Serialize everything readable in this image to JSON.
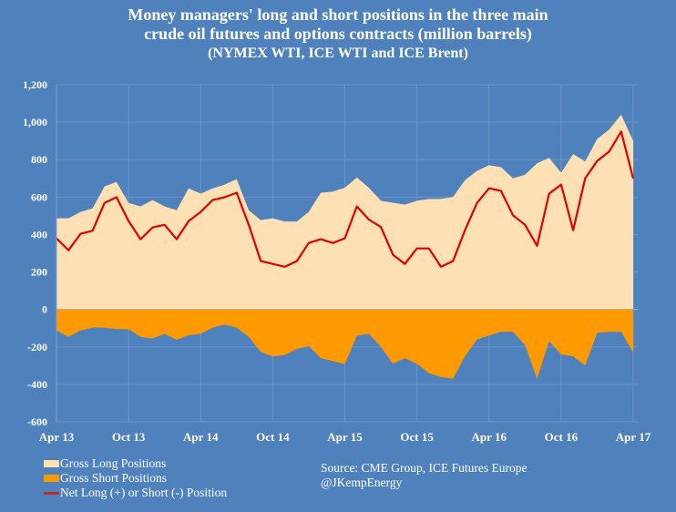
{
  "title": {
    "line1": "Money managers' long and short positions in the three main",
    "line2": "crude oil futures and options contracts (million barrels)",
    "line3": "(NYMEX WTI, ICE WTI and ICE Brent)"
  },
  "legend": {
    "long": "Gross Long Positions",
    "short": "Gross Short Positions",
    "net": "Net Long (+) or Short (-) Position"
  },
  "source": {
    "line1": "Source:  CME Group, ICE Futures Europe",
    "line2": "@JKempEnergy"
  },
  "colors": {
    "background": "#4f81bd",
    "long": "#fde1b5",
    "short": "#ff9900",
    "net": "#e00000"
  },
  "chart_data": {
    "type": "area",
    "title": "Money managers' long and short positions in the three main crude oil futures and options contracts (million barrels) (NYMEX WTI, ICE WTI and ICE Brent)",
    "ylim": [
      -600,
      1200
    ],
    "yticks": [
      -600,
      -400,
      -200,
      0,
      200,
      400,
      600,
      800,
      1000,
      1200
    ],
    "ytick_labels": [
      "-600",
      "-400",
      "-200",
      "0",
      "200",
      "400",
      "600",
      "800",
      "1,000",
      "1,200"
    ],
    "xtick_labels": [
      "Apr 13",
      "Oct 13",
      "Apr 14",
      "Oct 14",
      "Apr 15",
      "Oct 15",
      "Apr 16",
      "Oct 16",
      "Apr 17"
    ],
    "grid": true,
    "legend_position": "bottom-left",
    "x": [
      "2013-04",
      "2013-05",
      "2013-06",
      "2013-07",
      "2013-08",
      "2013-09",
      "2013-10",
      "2013-11",
      "2013-12",
      "2014-01",
      "2014-02",
      "2014-03",
      "2014-04",
      "2014-05",
      "2014-06",
      "2014-07",
      "2014-08",
      "2014-09",
      "2014-10",
      "2014-11",
      "2014-12",
      "2015-01",
      "2015-02",
      "2015-03",
      "2015-04",
      "2015-05",
      "2015-06",
      "2015-07",
      "2015-08",
      "2015-09",
      "2015-10",
      "2015-11",
      "2015-12",
      "2016-01",
      "2016-02",
      "2016-03",
      "2016-04",
      "2016-05",
      "2016-06",
      "2016-07",
      "2016-08",
      "2016-09",
      "2016-10",
      "2016-11",
      "2016-12",
      "2017-01",
      "2017-02",
      "2017-03",
      "2017-04"
    ],
    "series": [
      {
        "name": "Gross Long Positions",
        "type": "area",
        "values": [
          487,
          487,
          521,
          540,
          657,
          681,
          569,
          550,
          584,
          550,
          530,
          647,
          618,
          647,
          667,
          696,
          530,
          477,
          487,
          470,
          470,
          521,
          623,
          630,
          650,
          705,
          650,
          580,
          570,
          560,
          580,
          590,
          590,
          600,
          690,
          740,
          770,
          760,
          700,
          720,
          780,
          810,
          730,
          830,
          790,
          910,
          960,
          1040,
          900
        ]
      },
      {
        "name": "Gross Short Positions",
        "type": "area",
        "values": [
          -112,
          -146,
          -112,
          -97,
          -97,
          -105,
          -105,
          -146,
          -155,
          -130,
          -162,
          -138,
          -130,
          -97,
          -81,
          -97,
          -146,
          -227,
          -251,
          -243,
          -211,
          -195,
          -260,
          -276,
          -292,
          -140,
          -130,
          -200,
          -290,
          -260,
          -290,
          -340,
          -360,
          -370,
          -250,
          -160,
          -140,
          -120,
          -120,
          -190,
          -370,
          -170,
          -240,
          -250,
          -300,
          -125,
          -120,
          -120,
          -230
        ]
      },
      {
        "name": "Net Long (+) or Short (-) Position",
        "type": "line",
        "values": [
          380,
          316,
          404,
          420,
          569,
          599,
          472,
          375,
          438,
          452,
          375,
          472,
          521,
          584,
          599,
          623,
          453,
          258,
          243,
          228,
          258,
          355,
          375,
          355,
          380,
          550,
          480,
          440,
          292,
          243,
          326,
          326,
          228,
          258,
          423,
          569,
          647,
          633,
          503,
          452,
          340,
          618,
          667,
          423,
          700,
          793,
          843,
          950,
          700
        ]
      }
    ]
  }
}
